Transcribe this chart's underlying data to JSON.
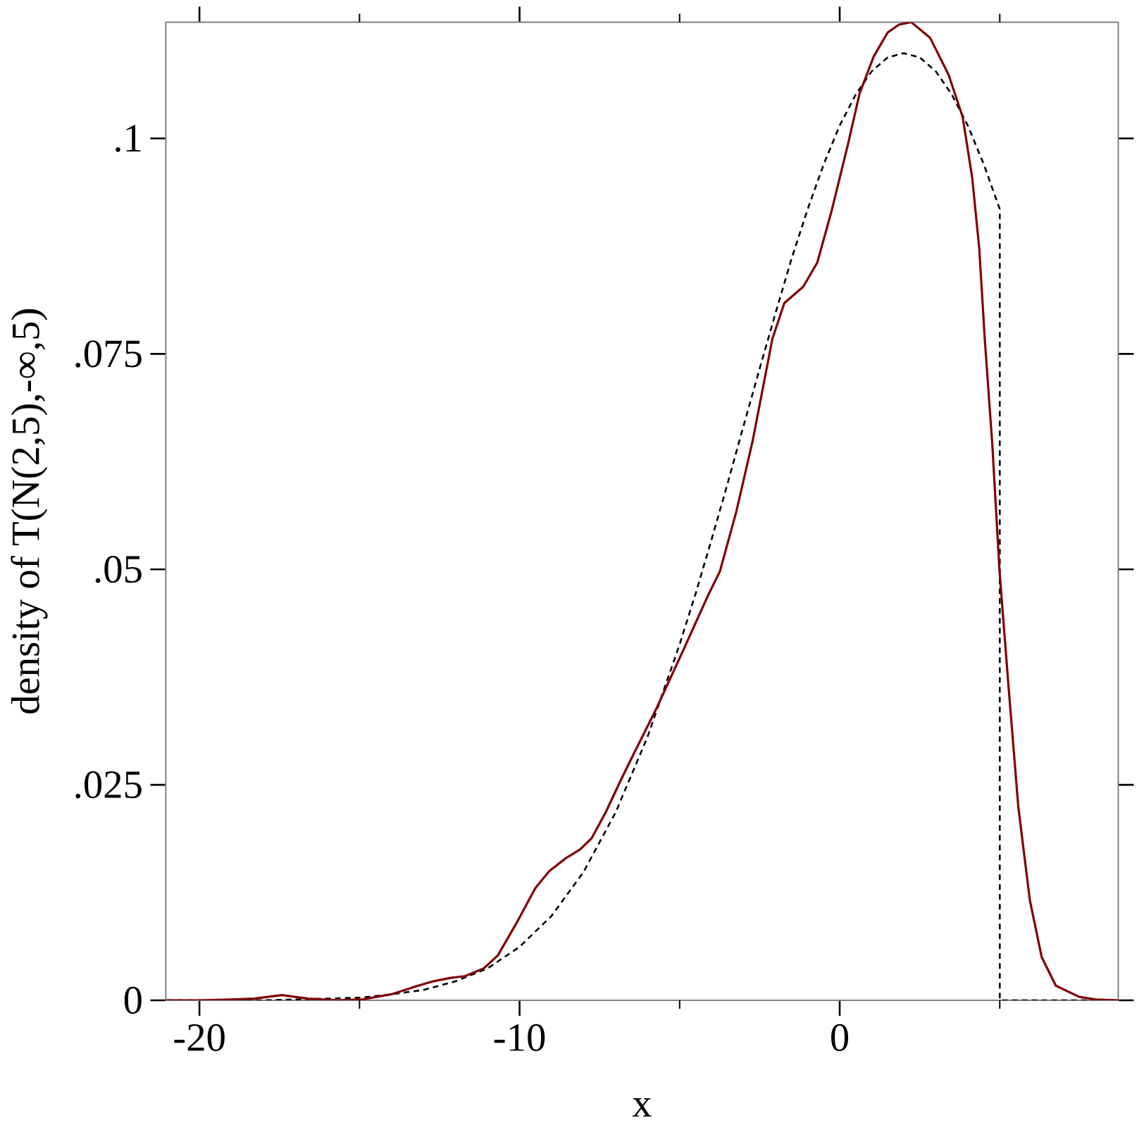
{
  "chart_data": {
    "type": "line",
    "xlabel": "x",
    "ylabel": "density of T(N(2,5),-∞,5)",
    "xlim": [
      -21.05,
      8.7
    ],
    "ylim": [
      0,
      0.1135
    ],
    "xticks": [
      -20,
      {
        "value": -15,
        "label": null
      },
      -10,
      {
        "value": -5,
        "label": null
      },
      0,
      {
        "value": 5,
        "label": null
      }
    ],
    "yticks": [
      0,
      {
        "value": 0.025,
        "label": ".025"
      },
      {
        "value": 0.05,
        "label": ".05"
      },
      {
        "value": 0.075,
        "label": ".075"
      },
      {
        "value": 0.1,
        "label": ".1"
      }
    ],
    "series": [
      {
        "color": "#000000",
        "line_style": "dashed",
        "x": [
          -21,
          -20,
          -19,
          -18,
          -17,
          -16,
          -15,
          -14,
          -13,
          -12,
          -11,
          -10,
          -9,
          -8,
          -7,
          -6,
          -5,
          -4.5,
          -4,
          -3.5,
          -3,
          -2.5,
          -2,
          -1.5,
          -1,
          -0.5,
          0,
          0.5,
          1,
          1.5,
          2,
          2.5,
          3,
          3.5,
          4,
          4.5,
          5,
          5,
          8.7
        ],
        "values": [
          0,
          0,
          0,
          0,
          0.0001,
          0.0002,
          0.0003,
          0.0007,
          0.0012,
          0.0022,
          0.0037,
          0.0062,
          0.0098,
          0.0149,
          0.0218,
          0.0306,
          0.0413,
          0.0472,
          0.0535,
          0.06,
          0.0667,
          0.0733,
          0.0798,
          0.0861,
          0.0918,
          0.097,
          0.1015,
          0.1051,
          0.1078,
          0.1094,
          0.1099,
          0.1094,
          0.1078,
          0.1051,
          0.1015,
          0.097,
          0.0918,
          0,
          0
        ]
      },
      {
        "color": "#800000",
        "line_style": "solid",
        "x": [
          -21.05,
          -20,
          -19,
          -18.3,
          -17.43,
          -16.6,
          -15.67,
          -14.92,
          -14,
          -13.34,
          -12.7,
          -12.15,
          -11.71,
          -11.12,
          -10.68,
          -10.09,
          -9.51,
          -9.07,
          -8.55,
          -8.11,
          -7.75,
          -7.31,
          -6.87,
          -6.46,
          -5.72,
          -4.84,
          -4.11,
          -3.74,
          -3.23,
          -2.72,
          -2.1,
          -1.73,
          -1.14,
          -0.7,
          -0.26,
          0.25,
          0.62,
          1.06,
          1.5,
          1.85,
          2.23,
          2.82,
          3.4,
          3.84,
          4.14,
          4.36,
          4.53,
          4.77,
          4.99,
          5.28,
          5.58,
          5.94,
          6.31,
          6.75,
          7.48,
          8,
          8.7
        ],
        "values": [
          0,
          0,
          0.0001,
          0.0002,
          0.0006,
          0.0002,
          0,
          0.0001,
          0.0007,
          0.0015,
          0.0022,
          0.0026,
          0.0028,
          0.0037,
          0.0052,
          0.009,
          0.013,
          0.015,
          0.0165,
          0.0175,
          0.0188,
          0.0218,
          0.0253,
          0.0284,
          0.0339,
          0.041,
          0.047,
          0.0498,
          0.0567,
          0.0649,
          0.0768,
          0.0809,
          0.0828,
          0.0856,
          0.0915,
          0.0992,
          0.1052,
          0.1095,
          0.1123,
          0.1132,
          0.1135,
          0.1117,
          0.1074,
          0.1025,
          0.0954,
          0.0872,
          0.0768,
          0.0643,
          0.0499,
          0.0361,
          0.0224,
          0.0116,
          0.005,
          0.0017,
          0.0004,
          0.0001,
          0
        ]
      }
    ]
  }
}
